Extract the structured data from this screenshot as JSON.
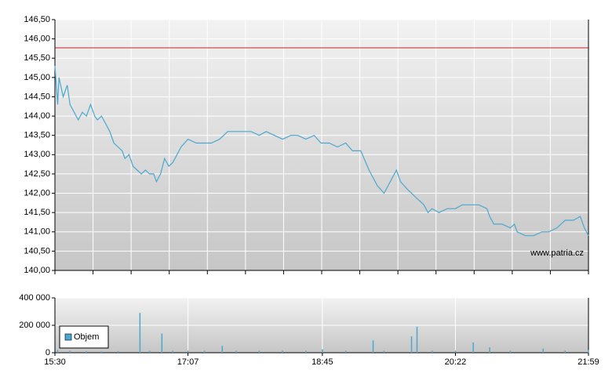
{
  "chart_data": [
    {
      "type": "line",
      "xlim": [
        930,
        1319
      ],
      "ylim": [
        140,
        146.5
      ],
      "yticks": [
        {
          "value": 140,
          "label": "140,00"
        },
        {
          "value": 140.5,
          "label": "140,50"
        },
        {
          "value": 141,
          "label": "141,00"
        },
        {
          "value": 141.5,
          "label": "141,50"
        },
        {
          "value": 142,
          "label": "142,00"
        },
        {
          "value": 142.5,
          "label": "142,50"
        },
        {
          "value": 143,
          "label": "143,00"
        },
        {
          "value": 143.5,
          "label": "143,50"
        },
        {
          "value": 144,
          "label": "144,00"
        },
        {
          "value": 144.5,
          "label": "144,50"
        },
        {
          "value": 145,
          "label": "145,00"
        },
        {
          "value": 145.5,
          "label": "145,50"
        },
        {
          "value": 146,
          "label": "146,00"
        },
        {
          "value": 146.5,
          "label": "146,50"
        }
      ],
      "grid": true,
      "ref_line": {
        "value": 145.77,
        "color": "#cc2222"
      },
      "watermark": "www.patria.cz",
      "series": [
        {
          "color": "#4aa8d0",
          "x": [
            930,
            932,
            933,
            936,
            939,
            941,
            944,
            947,
            950,
            953,
            956,
            959,
            961,
            964,
            967,
            970,
            973,
            976,
            979,
            981,
            984,
            987,
            990,
            993,
            996,
            999,
            1002,
            1004,
            1007,
            1010,
            1013,
            1016,
            1019,
            1022,
            1027,
            1033,
            1039,
            1044,
            1050,
            1056,
            1062,
            1067,
            1073,
            1079,
            1084,
            1090,
            1096,
            1102,
            1107,
            1113,
            1119,
            1124,
            1130,
            1136,
            1142,
            1147,
            1153,
            1159,
            1165,
            1170,
            1176,
            1179,
            1182,
            1187,
            1193,
            1199,
            1202,
            1205,
            1210,
            1216,
            1222,
            1227,
            1233,
            1239,
            1245,
            1247,
            1250,
            1256,
            1262,
            1265,
            1267,
            1273,
            1279,
            1285,
            1290,
            1296,
            1302,
            1308,
            1313,
            1316,
            1319
          ],
          "values": [
            145.3,
            144.3,
            145.0,
            144.5,
            144.8,
            144.3,
            144.1,
            143.9,
            144.1,
            144.0,
            144.3,
            144.0,
            143.9,
            144.0,
            143.8,
            143.6,
            143.3,
            143.2,
            143.1,
            142.9,
            143.0,
            142.7,
            142.6,
            142.5,
            142.6,
            142.5,
            142.5,
            142.3,
            142.5,
            142.9,
            142.7,
            142.8,
            143.0,
            143.2,
            143.4,
            143.3,
            143.3,
            143.3,
            143.4,
            143.6,
            143.6,
            143.6,
            143.6,
            143.5,
            143.6,
            143.5,
            143.4,
            143.5,
            143.5,
            143.4,
            143.5,
            143.3,
            143.3,
            143.2,
            143.3,
            143.1,
            143.1,
            142.6,
            142.2,
            142.0,
            142.4,
            142.6,
            142.3,
            142.1,
            141.9,
            141.7,
            141.5,
            141.6,
            141.5,
            141.6,
            141.6,
            141.7,
            141.7,
            141.7,
            141.6,
            141.4,
            141.2,
            141.2,
            141.1,
            141.2,
            141.0,
            140.9,
            140.9,
            141.0,
            141.0,
            141.1,
            141.3,
            141.3,
            141.4,
            141.1,
            140.9
          ]
        }
      ]
    },
    {
      "type": "bar",
      "xlim": [
        930,
        1319
      ],
      "xticks": [
        {
          "value": 930,
          "label": "15:30"
        },
        {
          "value": 1027,
          "label": "17:07"
        },
        {
          "value": 1125,
          "label": "18:45"
        },
        {
          "value": 1222,
          "label": "20:22"
        },
        {
          "value": 1319,
          "label": "21:59"
        }
      ],
      "ylim": [
        0,
        400000
      ],
      "yticks": [
        0,
        {
          "value": 200000,
          "label": "200 000"
        },
        {
          "value": 400000,
          "label": "400 000"
        }
      ],
      "grid": true,
      "legend": "lower left",
      "series": [
        {
          "name": "Objem",
          "color": "#4aa8d0",
          "x": [
            932,
            941,
            953,
            964,
            976,
            992,
            999,
            1008,
            1016,
            1027,
            1039,
            1052,
            1062,
            1079,
            1096,
            1113,
            1125,
            1142,
            1162,
            1170,
            1190,
            1194,
            1205,
            1222,
            1235,
            1247,
            1262,
            1286,
            1302,
            1319
          ],
          "values": [
            20000,
            15000,
            12000,
            10000,
            12000,
            290000,
            15000,
            140000,
            15000,
            15000,
            15000,
            50000,
            15000,
            15000,
            15000,
            15000,
            25000,
            15000,
            90000,
            15000,
            120000,
            190000,
            15000,
            15000,
            75000,
            40000,
            15000,
            30000,
            15000,
            20000
          ]
        }
      ]
    }
  ]
}
